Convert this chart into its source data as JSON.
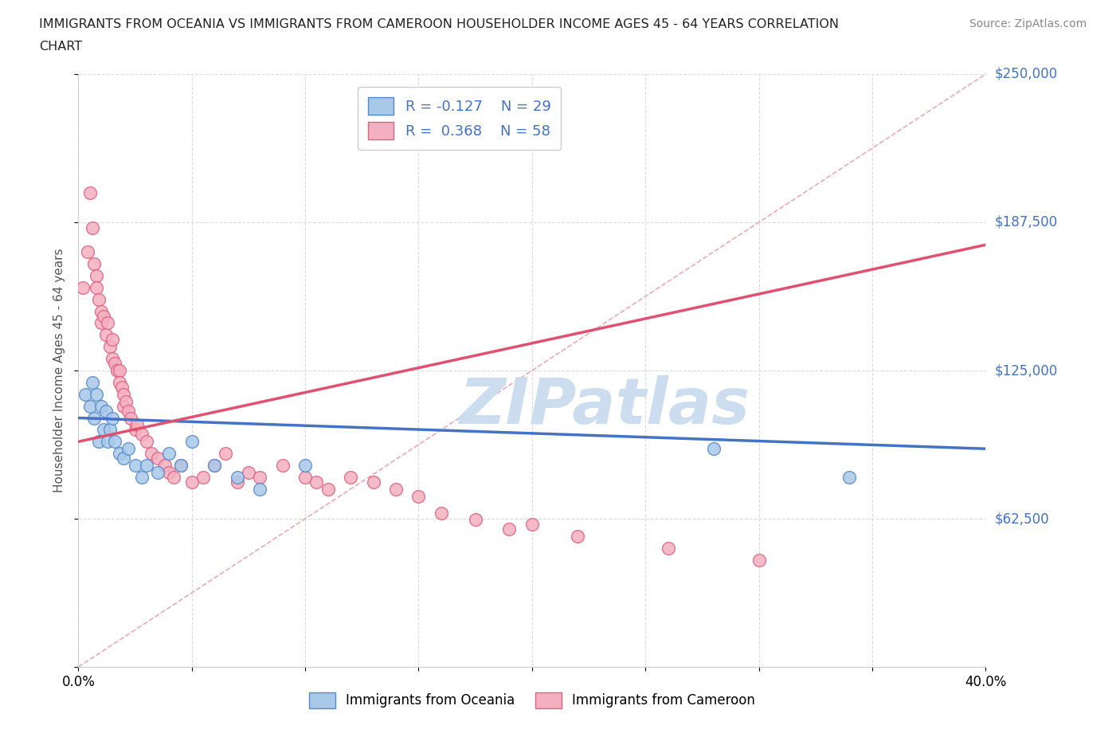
{
  "title_line1": "IMMIGRANTS FROM OCEANIA VS IMMIGRANTS FROM CAMEROON HOUSEHOLDER INCOME AGES 45 - 64 YEARS CORRELATION",
  "title_line2": "CHART",
  "source": "Source: ZipAtlas.com",
  "ylabel": "Householder Income Ages 45 - 64 years",
  "xlim": [
    0.0,
    0.4
  ],
  "ylim": [
    0,
    250000
  ],
  "yticks": [
    0,
    62500,
    125000,
    187500,
    250000
  ],
  "ytick_labels": [
    "",
    "$62,500",
    "$125,000",
    "$187,500",
    "$250,000"
  ],
  "xticks": [
    0.0,
    0.05,
    0.1,
    0.15,
    0.2,
    0.25,
    0.3,
    0.35,
    0.4
  ],
  "oceania_color": "#a8c8e8",
  "cameroon_color": "#f4b0c0",
  "oceania_edge_color": "#5588cc",
  "cameroon_edge_color": "#e06080",
  "line_color_oceania": "#4472c4",
  "line_color_cameroon": "#e05070",
  "diag_line_color": "#e8a0b0",
  "r_oceania": -0.127,
  "n_oceania": 29,
  "r_cameroon": 0.368,
  "n_cameroon": 58,
  "watermark": "ZIPatlas",
  "watermark_color": "#ccddf0",
  "ytick_label_color": "#4472c4",
  "legend_text_color": "#4472c4",
  "oceania_x": [
    0.003,
    0.005,
    0.006,
    0.007,
    0.008,
    0.009,
    0.01,
    0.011,
    0.012,
    0.013,
    0.014,
    0.015,
    0.016,
    0.018,
    0.02,
    0.022,
    0.025,
    0.028,
    0.03,
    0.035,
    0.04,
    0.045,
    0.05,
    0.06,
    0.07,
    0.08,
    0.1,
    0.28,
    0.34
  ],
  "oceania_y": [
    115000,
    110000,
    120000,
    105000,
    115000,
    95000,
    110000,
    100000,
    108000,
    95000,
    100000,
    105000,
    95000,
    90000,
    88000,
    92000,
    85000,
    80000,
    85000,
    82000,
    90000,
    85000,
    95000,
    85000,
    80000,
    75000,
    85000,
    92000,
    80000
  ],
  "cameroon_x": [
    0.002,
    0.004,
    0.005,
    0.006,
    0.007,
    0.008,
    0.008,
    0.009,
    0.01,
    0.01,
    0.011,
    0.012,
    0.013,
    0.014,
    0.015,
    0.015,
    0.016,
    0.017,
    0.018,
    0.018,
    0.019,
    0.02,
    0.02,
    0.021,
    0.022,
    0.023,
    0.025,
    0.026,
    0.028,
    0.03,
    0.032,
    0.035,
    0.038,
    0.04,
    0.042,
    0.045,
    0.05,
    0.055,
    0.06,
    0.065,
    0.07,
    0.075,
    0.08,
    0.09,
    0.1,
    0.105,
    0.11,
    0.12,
    0.13,
    0.14,
    0.15,
    0.16,
    0.175,
    0.19,
    0.2,
    0.22,
    0.26,
    0.3
  ],
  "cameroon_y": [
    160000,
    175000,
    200000,
    185000,
    170000,
    165000,
    160000,
    155000,
    150000,
    145000,
    148000,
    140000,
    145000,
    135000,
    138000,
    130000,
    128000,
    125000,
    125000,
    120000,
    118000,
    115000,
    110000,
    112000,
    108000,
    105000,
    100000,
    102000,
    98000,
    95000,
    90000,
    88000,
    85000,
    82000,
    80000,
    85000,
    78000,
    80000,
    85000,
    90000,
    78000,
    82000,
    80000,
    85000,
    80000,
    78000,
    75000,
    80000,
    78000,
    75000,
    72000,
    65000,
    62000,
    58000,
    60000,
    55000,
    50000,
    45000
  ]
}
